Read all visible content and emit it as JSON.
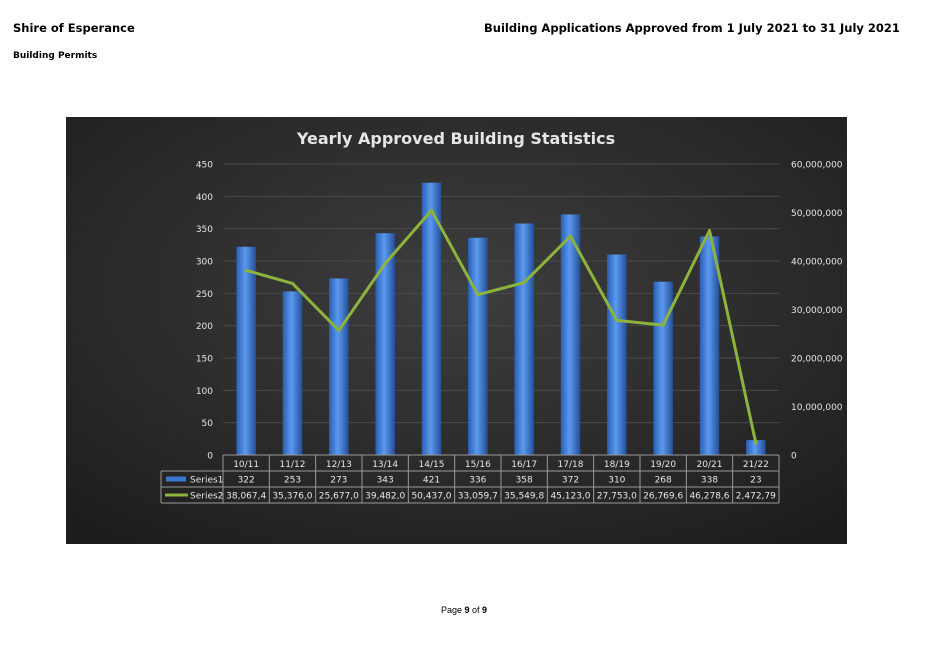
{
  "header": {
    "organisation": "Shire of Esperance",
    "department": "Building Permits",
    "report_title": "Building Applications Approved from 1 July 2021 to 31 July 2021"
  },
  "footer": {
    "page_word": "Page",
    "page_number": "9",
    "of_word": "of",
    "page_total": "9"
  },
  "chart_data": {
    "type": "bar",
    "title": "Yearly Approved Building Statistics",
    "categories": [
      "10/11",
      "11/12",
      "12/13",
      "13/14",
      "14/15",
      "15/16",
      "16/17",
      "17/18",
      "18/19",
      "19/20",
      "20/21",
      "21/22"
    ],
    "series": [
      {
        "name": "Series1",
        "type": "bar",
        "axis": "left",
        "color": "#3a78d0",
        "values": [
          322,
          253,
          273,
          343,
          421,
          336,
          358,
          372,
          310,
          268,
          338,
          23
        ],
        "table_labels": [
          "322",
          "253",
          "273",
          "343",
          "421",
          "336",
          "358",
          "372",
          "310",
          "268",
          "338",
          "23"
        ]
      },
      {
        "name": "Series2",
        "type": "line",
        "axis": "right",
        "color": "#8db33c",
        "values": [
          38067400,
          35376000,
          25677000,
          39482000,
          50437000,
          33059700,
          35549800,
          45123000,
          27753000,
          26769600,
          46278600,
          2472790
        ],
        "table_labels": [
          "38,067,4",
          "35,376,0",
          "25,677,0",
          "39,482,0",
          "50,437,0",
          "33,059,7",
          "35,549,8",
          "45,123,0",
          "27,753,0",
          "26,769,6",
          "46,278,6",
          "2,472,79"
        ]
      }
    ],
    "y_left": {
      "min": 0,
      "max": 450,
      "step": 50,
      "tick_labels": [
        "0",
        "50",
        "100",
        "150",
        "200",
        "250",
        "300",
        "350",
        "400",
        "450"
      ]
    },
    "y_right": {
      "min": 0,
      "max": 60000000,
      "step": 10000000,
      "tick_labels": [
        "0",
        "10,000,000",
        "20,000,000",
        "30,000,000",
        "40,000,000",
        "50,000,000",
        "60,000,000"
      ]
    },
    "grid": true,
    "legend": "data-table-below",
    "colors": {
      "background": "#2e2e2e",
      "grid": "#4a4a4a",
      "text": "#e6e6e6",
      "table_border": "#9a9a9a"
    }
  }
}
